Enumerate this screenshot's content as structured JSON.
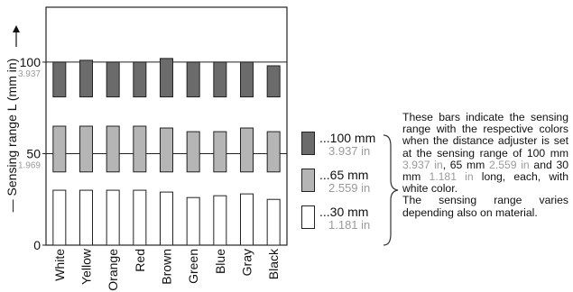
{
  "chart_data": {
    "type": "bar",
    "ylabel": "Sensing range L (mm in)",
    "ylim": [
      0,
      130
    ],
    "yticks": [
      {
        "value": 0,
        "label": "0",
        "sub": ""
      },
      {
        "value": 50,
        "label": "50",
        "sub": "1.969"
      },
      {
        "value": 100,
        "label": "100",
        "sub": "3.937"
      }
    ],
    "categories": [
      "White",
      "Yellow",
      "Orange",
      "Red",
      "Brown",
      "Green",
      "Blue",
      "Gray",
      "Black"
    ],
    "series": [
      {
        "name": "100 mm",
        "fill": "#6b6b6b",
        "bar_low": 81,
        "values": [
          100,
          101,
          100,
          100,
          102,
          100,
          100,
          100,
          98
        ]
      },
      {
        "name": "65 mm",
        "fill": "#b5b5b5",
        "bar_low": 40,
        "values": [
          65,
          65,
          65,
          65,
          64,
          62,
          62,
          64,
          62
        ]
      },
      {
        "name": "30 mm",
        "fill": "#ffffff",
        "bar_low": 0,
        "values": [
          30,
          30,
          30,
          30,
          29,
          26,
          27,
          28,
          25
        ]
      }
    ]
  },
  "legend": [
    {
      "label": "100 mm",
      "sub": "3.937 in",
      "color": "#6b6b6b"
    },
    {
      "label": "65 mm",
      "sub": "2.559 in",
      "color": "#b5b5b5"
    },
    {
      "label": "30 mm",
      "sub": "1.181 in",
      "color": "#ffffff"
    }
  ],
  "legend_dots": "...",
  "note": {
    "p1_a": "These bars indicate the sensing range with the respective colors when the distance adjuster is set at the sensing range of 100 mm ",
    "in1": "3.937 in",
    "p1_b": ", 65 mm ",
    "in2": "2.559 in",
    "p1_c": " and 30 mm ",
    "in3": "1.181 in",
    "p1_d": " long, each, with white color.",
    "p2": "The sensing range varies depending also on material."
  }
}
